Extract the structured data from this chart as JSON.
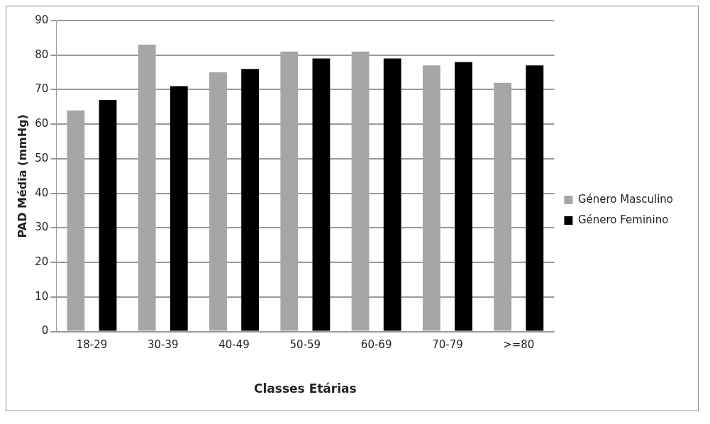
{
  "chart_data": {
    "type": "bar",
    "xlabel": "Classes Etárias",
    "ylabel": "PAD Média (mmHg)",
    "categories": [
      "18-29",
      "30-39",
      "40-49",
      "50-59",
      "60-69",
      "70-79",
      ">=80"
    ],
    "series": [
      {
        "name": "Género Masculino",
        "color": "#a6a6a6",
        "values": [
          64,
          83,
          75,
          81,
          81,
          77,
          72
        ]
      },
      {
        "name": "Género Feminino",
        "color": "#000000",
        "values": [
          67,
          71,
          76,
          79,
          79,
          78,
          77
        ]
      }
    ],
    "ylim": [
      0,
      90
    ],
    "yticks": [
      0,
      10,
      20,
      30,
      40,
      50,
      60,
      70,
      80,
      90
    ],
    "grid": "y",
    "legend": "right"
  }
}
